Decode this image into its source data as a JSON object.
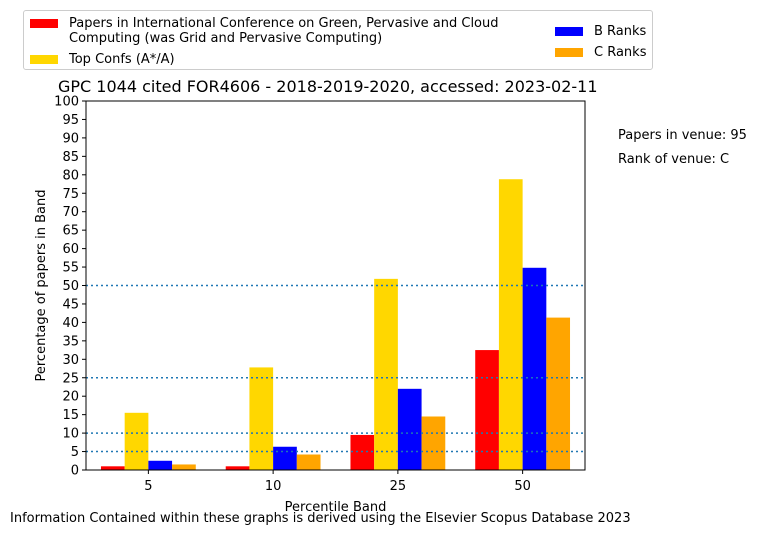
{
  "title": "GPC 1044 cited FOR4606 - 2018-2019-2020, accessed: 2023-02-11",
  "side_notes": {
    "papers_in_venue": "Papers in venue: 95",
    "rank_of_venue": "Rank of venue: C"
  },
  "footer": "Information Contained within these graphs is derived using the Elsevier Scopus Database 2023",
  "legend": [
    {
      "label": "Papers in International Conference on Green, Pervasive and Cloud\nComputing (was Grid and Pervasive Computing)",
      "color": "#ff0000"
    },
    {
      "label": "Top Confs (A*/A)",
      "color": "#ffd700"
    },
    {
      "label": "B Ranks",
      "color": "#0000ff"
    },
    {
      "label": "C Ranks",
      "color": "#ffa500"
    }
  ],
  "chart_data": {
    "type": "bar",
    "title": "GPC 1044 cited FOR4606 - 2018-2019-2020, accessed: 2023-02-11",
    "xlabel": "Percentile Band",
    "ylabel": "Percentage of papers in Band",
    "categories": [
      "5",
      "10",
      "25",
      "50"
    ],
    "ylim": [
      0,
      100
    ],
    "yticks": [
      0,
      5,
      10,
      15,
      20,
      25,
      30,
      35,
      40,
      45,
      50,
      55,
      60,
      65,
      70,
      75,
      80,
      85,
      90,
      95,
      100
    ],
    "reference_lines": [
      5,
      10,
      25,
      50
    ],
    "legend_position": "top",
    "series": [
      {
        "name": "Papers in International Conference on Green, Pervasive and Cloud Computing (was Grid and Pervasive Computing)",
        "color": "#ff0000",
        "values": [
          1.0,
          1.0,
          9.5,
          32.5
        ]
      },
      {
        "name": "Top Confs (A*/A)",
        "color": "#ffd700",
        "values": [
          15.5,
          27.8,
          51.8,
          78.8
        ]
      },
      {
        "name": "B Ranks",
        "color": "#0000ff",
        "values": [
          2.5,
          6.3,
          22.0,
          54.8
        ]
      },
      {
        "name": "C Ranks",
        "color": "#ffa500",
        "values": [
          1.5,
          4.2,
          14.5,
          41.3
        ]
      }
    ]
  }
}
